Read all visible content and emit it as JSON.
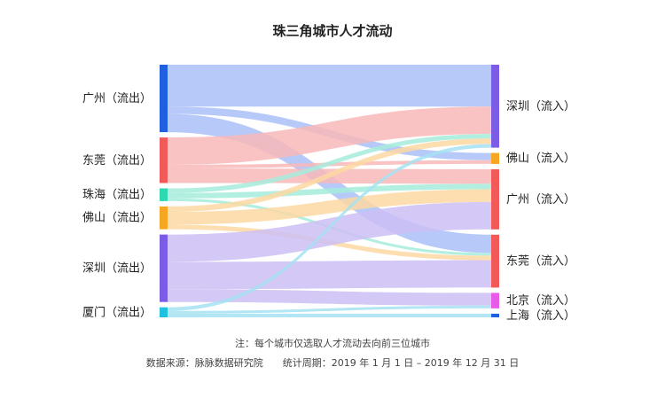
{
  "chart_data": {
    "type": "sankey",
    "title": "珠三角城市人才流动",
    "sources": [
      {
        "id": "gz_out",
        "label": "广州（流出）",
        "color": "#1f5fe0"
      },
      {
        "id": "dg_out",
        "label": "东莞（流出）",
        "color": "#f25a5a"
      },
      {
        "id": "zh_out",
        "label": "珠海（流出）",
        "color": "#2ed8b0"
      },
      {
        "id": "fs_out",
        "label": "佛山（流出）",
        "color": "#f6a623"
      },
      {
        "id": "sz_out",
        "label": "深圳（流出）",
        "color": "#7b5ce6"
      },
      {
        "id": "xm_out",
        "label": "厦门（流出）",
        "color": "#1fc0e0"
      }
    ],
    "targets": [
      {
        "id": "sz_in",
        "label": "深圳（流入）",
        "color": "#7b5ce6"
      },
      {
        "id": "fs_in",
        "label": "佛山（流入）",
        "color": "#f6a623"
      },
      {
        "id": "gz_in",
        "label": "广州（流入）",
        "color": "#f25a5a"
      },
      {
        "id": "dg_in",
        "label": "东莞（流入）",
        "color": "#f25a5a"
      },
      {
        "id": "bj_in",
        "label": "北京（流入）",
        "color": "#e85ae8"
      },
      {
        "id": "sh_in",
        "label": "上海（流入）",
        "color": "#1f5fe0"
      }
    ],
    "links": [
      {
        "source": "gz_out",
        "target": "sz_in",
        "value": 46,
        "color": "#a9bff7"
      },
      {
        "source": "gz_out",
        "target": "fs_in",
        "value": 8,
        "color": "#a9bff7"
      },
      {
        "source": "gz_out",
        "target": "dg_in",
        "value": 20,
        "color": "#a9bff7"
      },
      {
        "source": "dg_out",
        "target": "sz_in",
        "value": 30,
        "color": "#f9b9b9"
      },
      {
        "source": "dg_out",
        "target": "fs_in",
        "value": 4,
        "color": "#f9b9b9"
      },
      {
        "source": "dg_out",
        "target": "gz_in",
        "value": 16,
        "color": "#f9b9b9"
      },
      {
        "source": "zh_out",
        "target": "sz_in",
        "value": 5,
        "color": "#a6ecdc"
      },
      {
        "source": "zh_out",
        "target": "gz_in",
        "value": 6,
        "color": "#a6ecdc"
      },
      {
        "source": "zh_out",
        "target": "dg_in",
        "value": 3,
        "color": "#a6ecdc"
      },
      {
        "source": "fs_out",
        "target": "sz_in",
        "value": 6,
        "color": "#fbd8a2"
      },
      {
        "source": "fs_out",
        "target": "gz_in",
        "value": 14,
        "color": "#fbd8a2"
      },
      {
        "source": "fs_out",
        "target": "dg_in",
        "value": 5,
        "color": "#fbd8a2"
      },
      {
        "source": "sz_out",
        "target": "gz_in",
        "value": 30,
        "color": "#cdc0f5"
      },
      {
        "source": "sz_out",
        "target": "dg_in",
        "value": 30,
        "color": "#cdc0f5"
      },
      {
        "source": "sz_out",
        "target": "bj_in",
        "value": 14,
        "color": "#cdc0f5"
      },
      {
        "source": "xm_out",
        "target": "sz_in",
        "value": 4,
        "color": "#a4e2f2"
      },
      {
        "source": "xm_out",
        "target": "bj_in",
        "value": 3,
        "color": "#a4e2f2"
      },
      {
        "source": "xm_out",
        "target": "sh_in",
        "value": 4,
        "color": "#a4e2f2"
      }
    ]
  },
  "footer": {
    "note": "注：每个城市仅选取人才流动去向前三位城市",
    "source": "数据来源：脉脉数据研究院　　统计周期：2019 年 1 月 1 日 – 2019 年 12 月 31 日"
  }
}
